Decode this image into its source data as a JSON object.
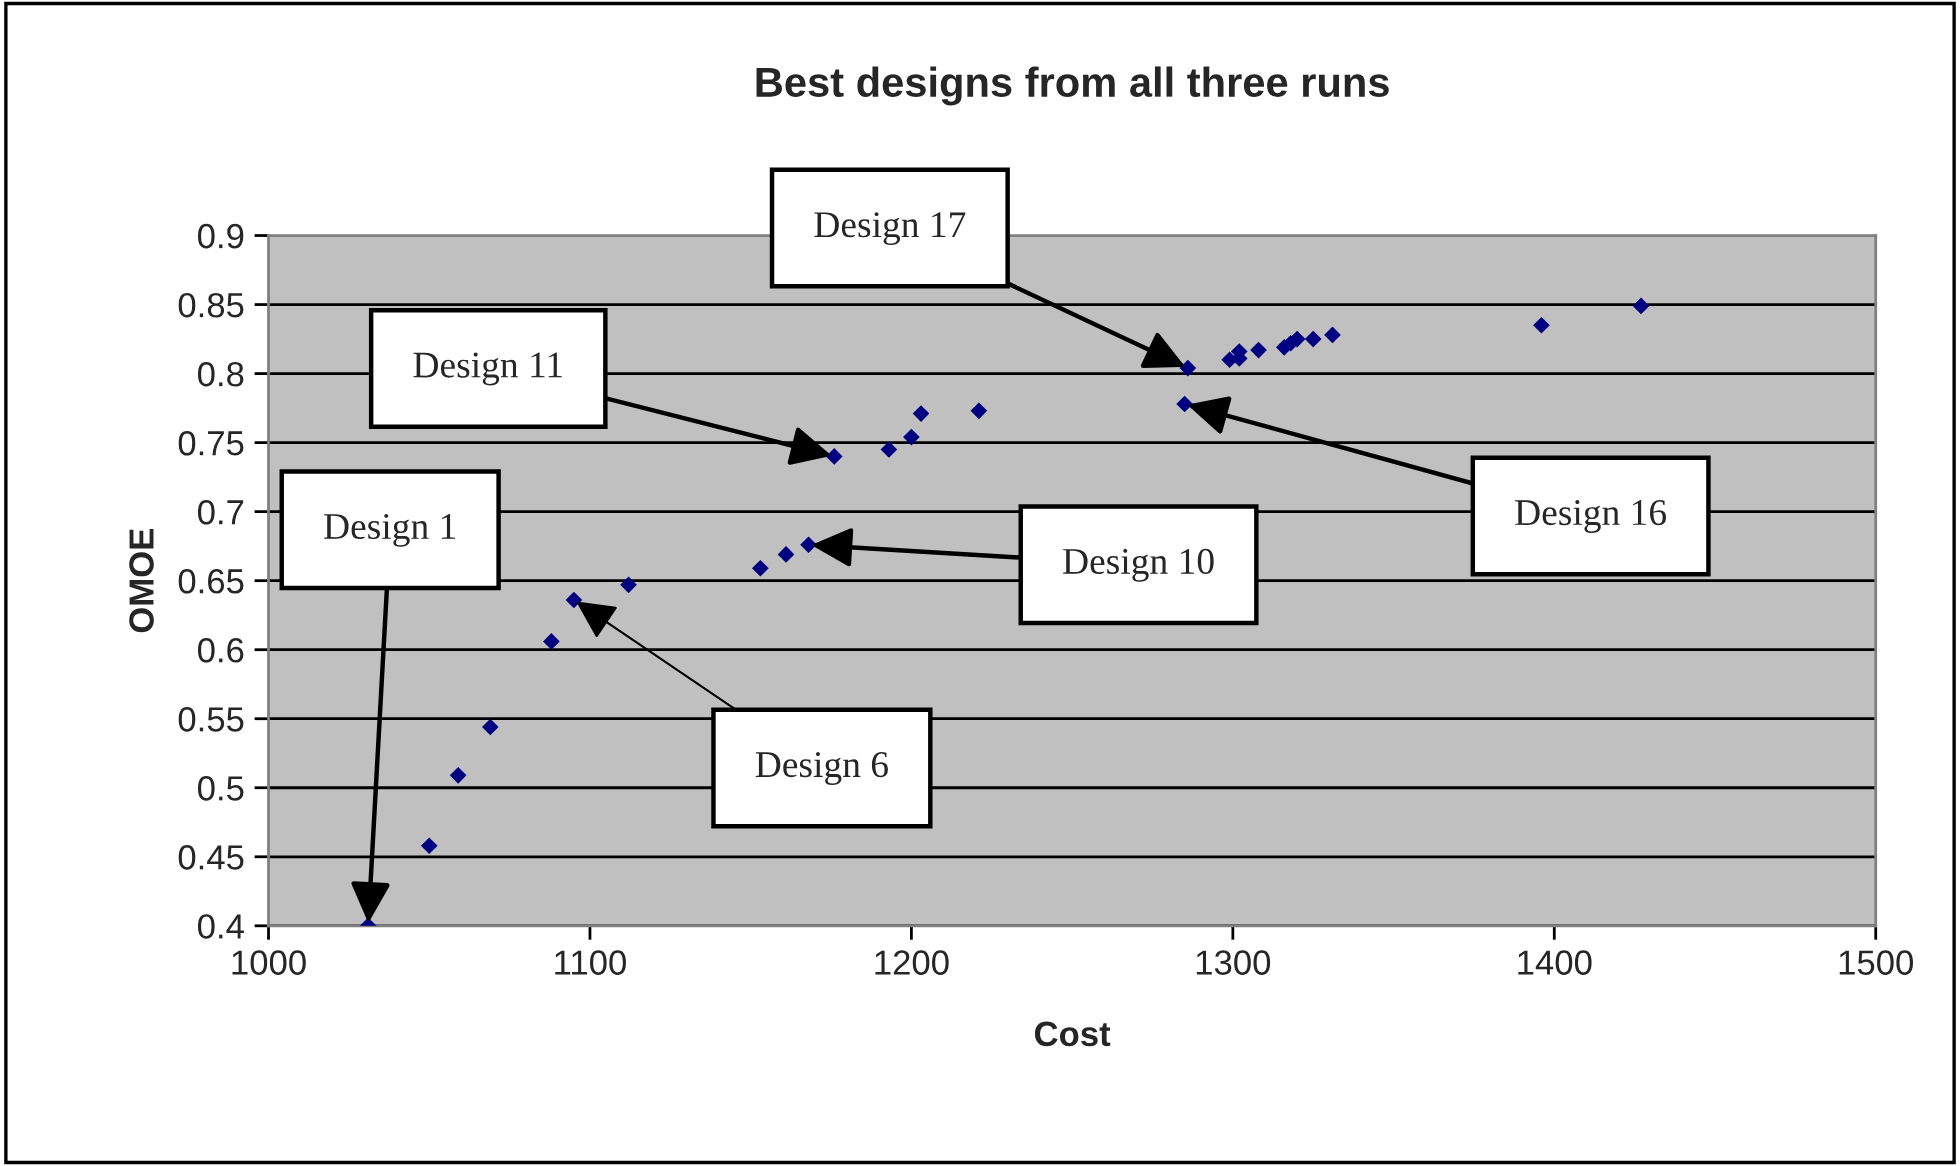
{
  "chart_data": {
    "type": "scatter",
    "title": "Best designs from all three runs",
    "xlabel": "Cost",
    "ylabel": "OMOE",
    "x": [
      1031,
      1050,
      1059,
      1069,
      1088,
      1095,
      1112,
      1153,
      1161,
      1168,
      1176,
      1193,
      1200,
      1203,
      1221,
      1285,
      1286,
      1299,
      1302,
      1302,
      1308,
      1316,
      1318,
      1320,
      1325,
      1331,
      1396,
      1427
    ],
    "series": [
      {
        "color": "#000080",
        "values": [
          0.4,
          0.458,
          0.509,
          0.544,
          0.606,
          0.636,
          0.647,
          0.659,
          0.669,
          0.676,
          0.74,
          0.745,
          0.754,
          0.771,
          0.773,
          0.778,
          0.804,
          0.81,
          0.816,
          0.811,
          0.817,
          0.819,
          0.822,
          0.825,
          0.825,
          0.828,
          0.835,
          0.849
        ]
      }
    ],
    "xlim": [
      1000,
      1500
    ],
    "xticks": [
      1000,
      1100,
      1200,
      1300,
      1400,
      1500
    ],
    "ylim": [
      0.4,
      0.9
    ],
    "yticks": [
      0.4,
      0.45,
      0.5,
      0.55,
      0.6,
      0.65,
      0.7,
      0.75,
      0.8,
      0.85,
      0.9
    ],
    "grid": "y",
    "marker": "diamond",
    "legend": false,
    "annotations": [
      {
        "text": "Design 1",
        "x": 1031,
        "y": 0.4
      },
      {
        "text": "Design 6",
        "x": 1095,
        "y": 0.636
      },
      {
        "text": "Design 10",
        "x": 1168,
        "y": 0.676
      },
      {
        "text": "Design 11",
        "x": 1176,
        "y": 0.74
      },
      {
        "text": "Design 17",
        "x": 1286,
        "y": 0.804
      },
      {
        "text": "Design 16",
        "x": 1285,
        "y": 0.778
      }
    ]
  }
}
